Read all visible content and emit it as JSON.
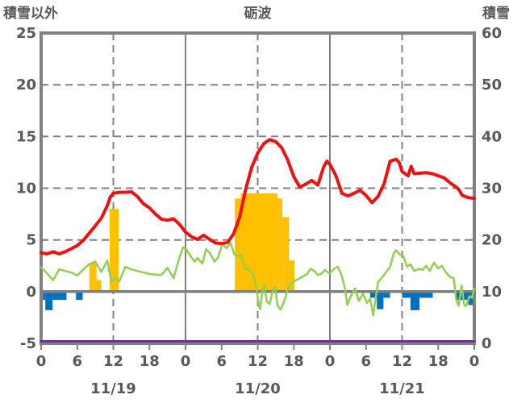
{
  "header": {
    "left_axis_title": "積雪以外",
    "chart_title": "砺波",
    "right_axis_title": "積雪"
  },
  "chart_data": {
    "type": "line+bar",
    "title": "砺波",
    "left_axis": {
      "title": "積雪以外",
      "range": [
        -5,
        25
      ],
      "ticks": [
        "25",
        "20",
        "15",
        "10",
        "5",
        "0",
        "-5"
      ]
    },
    "right_axis": {
      "title": "積雪",
      "range": [
        0,
        60
      ],
      "ticks": [
        "60",
        "50",
        "40",
        "30",
        "20",
        "10",
        "0"
      ]
    },
    "x_axis": {
      "total_hours": 72,
      "hours_per_day": 24,
      "hour_labels": [
        "0",
        "6",
        "12",
        "18"
      ],
      "end_hour_label": "0",
      "day_labels": [
        "11/19",
        "11/20",
        "11/21"
      ]
    },
    "grid": {
      "line_color": "#808080",
      "text_color": "#595959",
      "dashed_levels": [
        20,
        15,
        10,
        5
      ],
      "zero_line_level": 0,
      "solid_vertical_hours": [
        24,
        48
      ],
      "dashed_vertical_hours": [
        12,
        36,
        60
      ],
      "bottom_tick_step_hours": 6
    },
    "series": [
      {
        "name": "orange-bars",
        "type": "bar",
        "axis": "left",
        "color": "#ffc000",
        "bars": [
          [
            8.0,
            9.2,
            2.8
          ],
          [
            9.2,
            10.0,
            1.1
          ],
          [
            11.4,
            12.9,
            8.0
          ],
          [
            32.2,
            33.2,
            9.0
          ],
          [
            33.2,
            39.3,
            9.5
          ],
          [
            39.3,
            40.1,
            9.0
          ],
          [
            40.1,
            41.2,
            7.2
          ],
          [
            41.2,
            42.1,
            3.0
          ]
        ]
      },
      {
        "name": "blue-bars",
        "type": "bar",
        "axis": "left",
        "color": "#0070c0",
        "bars": [
          [
            0.3,
            0.7,
            -0.8
          ],
          [
            0.7,
            1.9,
            -1.8
          ],
          [
            1.9,
            4.2,
            -0.8
          ],
          [
            5.8,
            6.9,
            -0.8
          ],
          [
            54.7,
            55.8,
            -0.6
          ],
          [
            55.8,
            56.9,
            -1.7
          ],
          [
            56.9,
            58.0,
            -0.6
          ],
          [
            60.0,
            61.4,
            -0.6
          ],
          [
            61.4,
            62.9,
            -1.8
          ],
          [
            62.9,
            65.1,
            -0.6
          ],
          [
            69.0,
            71.0,
            -0.8
          ],
          [
            71.0,
            71.9,
            -1.3
          ]
        ]
      },
      {
        "name": "purple-line",
        "type": "line",
        "axis": "right",
        "color": "#7030a0",
        "width": 3,
        "points": [
          [
            0,
            0
          ],
          [
            72,
            0
          ]
        ]
      },
      {
        "name": "green-line",
        "type": "line",
        "axis": "left",
        "color": "#92d050",
        "width": 2.5,
        "points": [
          [
            0,
            2.35
          ],
          [
            1,
            1.75
          ],
          [
            2,
            1.1
          ],
          [
            3,
            2.15
          ],
          [
            4,
            2.0
          ],
          [
            5,
            1.85
          ],
          [
            6,
            1.55
          ],
          [
            7,
            2.15
          ],
          [
            8,
            2.65
          ],
          [
            9,
            2.9
          ],
          [
            10,
            1.9
          ],
          [
            11,
            3.0
          ],
          [
            11.7,
            0.9
          ],
          [
            12.3,
            1.35
          ],
          [
            13,
            1.0
          ],
          [
            14,
            2.4
          ],
          [
            15,
            2.15
          ],
          [
            16,
            2.0
          ],
          [
            17,
            1.85
          ],
          [
            18,
            1.7
          ],
          [
            19,
            1.65
          ],
          [
            20,
            1.6
          ],
          [
            21,
            2.3
          ],
          [
            22,
            1.3
          ],
          [
            23,
            3.3
          ],
          [
            23.6,
            4.3
          ],
          [
            24,
            4.15
          ],
          [
            25,
            3.3
          ],
          [
            25.5,
            2.9
          ],
          [
            26,
            3.25
          ],
          [
            26.8,
            2.7
          ],
          [
            27.4,
            4.1
          ],
          [
            28.1,
            3.7
          ],
          [
            28.8,
            2.9
          ],
          [
            29.4,
            3.3
          ],
          [
            30.1,
            4.6
          ],
          [
            30.8,
            4.2
          ],
          [
            31.5,
            4.7
          ],
          [
            32.1,
            3.6
          ],
          [
            32.8,
            3.45
          ],
          [
            33.2,
            3.55
          ],
          [
            33.9,
            2.25
          ],
          [
            34.6,
            2.1
          ],
          [
            35.3,
            1.6
          ],
          [
            35.7,
            0.65
          ],
          [
            36.2,
            -1.35
          ],
          [
            36.4,
            -1.7
          ],
          [
            36.8,
            0.1
          ],
          [
            37.1,
            0.65
          ],
          [
            37.5,
            -0.95
          ],
          [
            38,
            -1.2
          ],
          [
            38.5,
            0.1
          ],
          [
            38.9,
            0.45
          ],
          [
            39.3,
            -1.35
          ],
          [
            39.8,
            -1.75
          ],
          [
            40.4,
            -0.95
          ],
          [
            41,
            0.25
          ],
          [
            41.6,
            0.8
          ],
          [
            42.2,
            1.05
          ],
          [
            42.9,
            1.25
          ],
          [
            43.6,
            1.5
          ],
          [
            44.2,
            1.7
          ],
          [
            44.8,
            2.2
          ],
          [
            45.4,
            2.0
          ],
          [
            46,
            1.6
          ],
          [
            46.6,
            1.75
          ],
          [
            47.2,
            2.1
          ],
          [
            47.9,
            1.75
          ],
          [
            48.7,
            2.2
          ],
          [
            49.3,
            2.4
          ],
          [
            50,
            1.5
          ],
          [
            50.5,
            0.3
          ],
          [
            50.9,
            -1.3
          ],
          [
            51.5,
            -0.4
          ],
          [
            52.2,
            0.3
          ],
          [
            52.8,
            -0.9
          ],
          [
            53.5,
            -0.2
          ],
          [
            54.2,
            -1.1
          ],
          [
            54.7,
            -0.7
          ],
          [
            55.2,
            -2.3
          ],
          [
            56,
            0.9
          ],
          [
            57,
            1.6
          ],
          [
            58,
            2.4
          ],
          [
            58.6,
            3.7
          ],
          [
            59,
            4.0
          ],
          [
            59.6,
            3.6
          ],
          [
            60.2,
            3.45
          ],
          [
            60.8,
            2.4
          ],
          [
            61.4,
            2.65
          ],
          [
            62,
            2.0
          ],
          [
            62.9,
            2.2
          ],
          [
            63.4,
            2.1
          ],
          [
            64,
            2.5
          ],
          [
            64.6,
            2.0
          ],
          [
            65.3,
            2.8
          ],
          [
            66,
            2.25
          ],
          [
            66.6,
            2.5
          ],
          [
            67.2,
            1.9
          ],
          [
            68,
            1.4
          ],
          [
            68.6,
            1.3
          ],
          [
            69,
            -0.8
          ],
          [
            69.4,
            -1.35
          ],
          [
            69.9,
            0.6
          ],
          [
            70.3,
            -1.2
          ],
          [
            70.6,
            -1.4
          ],
          [
            71.2,
            -0.45
          ],
          [
            71.6,
            -0.6
          ],
          [
            72,
            0.3
          ]
        ]
      },
      {
        "name": "red-line",
        "type": "line",
        "axis": "left",
        "color": "#ee1111",
        "width": 4,
        "points": [
          [
            0,
            3.75
          ],
          [
            1,
            3.65
          ],
          [
            2,
            3.85
          ],
          [
            3,
            3.65
          ],
          [
            4,
            3.85
          ],
          [
            5,
            4.15
          ],
          [
            6,
            4.45
          ],
          [
            7,
            4.95
          ],
          [
            8,
            5.65
          ],
          [
            9,
            6.35
          ],
          [
            10,
            7.1
          ],
          [
            11,
            8.3
          ],
          [
            11.5,
            9.15
          ],
          [
            12,
            9.5
          ],
          [
            13,
            9.6
          ],
          [
            14,
            9.6
          ],
          [
            15,
            9.65
          ],
          [
            16,
            9.2
          ],
          [
            17,
            8.5
          ],
          [
            18,
            8.1
          ],
          [
            19,
            7.5
          ],
          [
            20,
            7.0
          ],
          [
            21,
            6.9
          ],
          [
            22,
            7.05
          ],
          [
            23,
            6.5
          ],
          [
            24,
            5.75
          ],
          [
            25,
            5.3
          ],
          [
            26,
            5.05
          ],
          [
            27,
            5.45
          ],
          [
            28,
            5.05
          ],
          [
            29,
            4.7
          ],
          [
            30,
            4.65
          ],
          [
            31,
            4.75
          ],
          [
            32,
            5.6
          ],
          [
            33,
            7.2
          ],
          [
            34,
            9.9
          ],
          [
            35,
            12.0
          ],
          [
            36,
            13.4
          ],
          [
            37,
            14.3
          ],
          [
            38,
            14.7
          ],
          [
            39,
            14.5
          ],
          [
            40,
            13.9
          ],
          [
            41,
            12.7
          ],
          [
            42,
            11.1
          ],
          [
            43,
            10.1
          ],
          [
            44,
            10.4
          ],
          [
            45,
            10.75
          ],
          [
            46,
            10.3
          ],
          [
            47,
            12.1
          ],
          [
            47.5,
            12.6
          ],
          [
            48,
            12.3
          ],
          [
            49,
            11.2
          ],
          [
            50,
            9.5
          ],
          [
            51,
            9.25
          ],
          [
            52,
            9.5
          ],
          [
            53,
            9.8
          ],
          [
            54,
            9.3
          ],
          [
            55,
            8.6
          ],
          [
            56,
            9.2
          ],
          [
            57,
            10.4
          ],
          [
            58,
            12.6
          ],
          [
            59,
            12.8
          ],
          [
            59.5,
            12.5
          ],
          [
            60,
            11.6
          ],
          [
            61,
            11.2
          ],
          [
            61.5,
            12.1
          ],
          [
            62,
            11.4
          ],
          [
            63,
            11.45
          ],
          [
            64,
            11.5
          ],
          [
            65,
            11.4
          ],
          [
            66,
            11.2
          ],
          [
            67,
            11.0
          ],
          [
            68,
            10.5
          ],
          [
            69,
            10.1
          ],
          [
            69.5,
            9.8
          ],
          [
            70,
            9.3
          ],
          [
            71,
            9.1
          ],
          [
            72,
            9.0
          ]
        ]
      }
    ]
  }
}
